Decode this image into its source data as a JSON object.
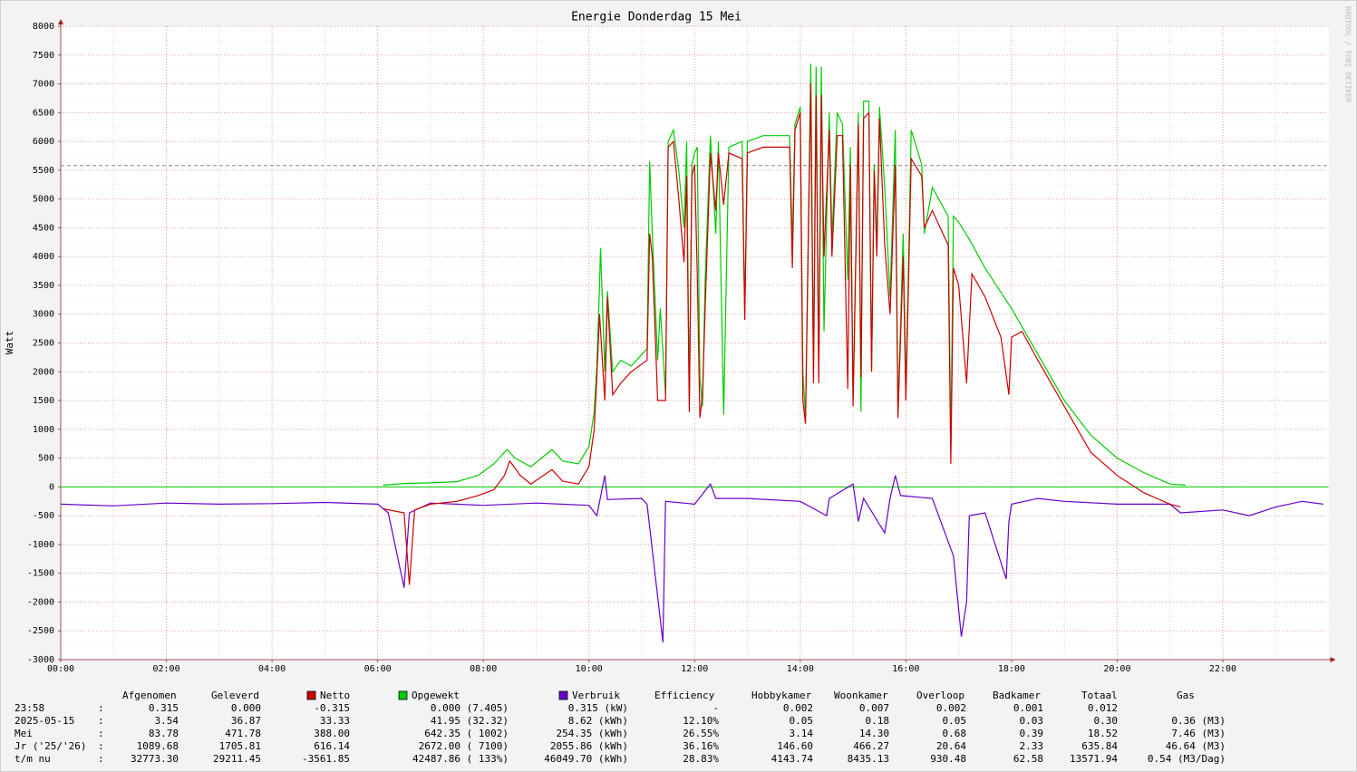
{
  "chart_data": {
    "type": "line",
    "title": "Energie Donderdag 15 Mei",
    "y_label": "Watt",
    "watermark": "RRDTOOL / TOBI OETIKER",
    "xlim": [
      0,
      24
    ],
    "ylim": [
      -3000,
      8000
    ],
    "xticks": [
      {
        "value": 0,
        "label": "00:00"
      },
      {
        "value": 2,
        "label": "02:00"
      },
      {
        "value": 4,
        "label": "04:00"
      },
      {
        "value": 6,
        "label": "06:00"
      },
      {
        "value": 8,
        "label": "08:00"
      },
      {
        "value": 10,
        "label": "10:00"
      },
      {
        "value": 12,
        "label": "12:00"
      },
      {
        "value": 14,
        "label": "14:00"
      },
      {
        "value": 16,
        "label": "16:00"
      },
      {
        "value": 18,
        "label": "18:00"
      },
      {
        "value": 20,
        "label": "20:00"
      },
      {
        "value": 22,
        "label": "22:00"
      }
    ],
    "yticks": [
      -3000,
      -2500,
      -2000,
      -1500,
      -1000,
      -500,
      0,
      500,
      1000,
      1500,
      2000,
      2500,
      3000,
      3500,
      4000,
      4500,
      5000,
      5500,
      6000,
      6500,
      7000,
      7500,
      8000
    ],
    "grid": true,
    "reference_line": 5580,
    "series": [
      {
        "name": "Netto",
        "color": "#cc0000",
        "x": [
          6.1,
          6.5,
          6.6,
          6.7,
          7.0,
          7.5,
          7.9,
          8.2,
          8.4,
          8.5,
          8.7,
          8.9,
          9.3,
          9.5,
          9.8,
          10.0,
          10.1,
          10.15,
          10.2,
          10.3,
          10.35,
          10.45,
          10.6,
          10.8,
          11.1,
          11.15,
          11.2,
          11.3,
          11.45,
          11.5,
          11.6,
          11.7,
          11.8,
          11.85,
          11.9,
          11.95,
          12.0,
          12.05,
          12.1,
          12.15,
          12.2,
          12.3,
          12.4,
          12.45,
          12.55,
          12.65,
          12.9,
          12.95,
          13.0,
          13.3,
          13.8,
          13.85,
          13.9,
          14.0,
          14.05,
          14.1,
          14.2,
          14.25,
          14.3,
          14.35,
          14.4,
          14.45,
          14.55,
          14.6,
          14.7,
          14.8,
          14.9,
          14.95,
          15.0,
          15.1,
          15.15,
          15.2,
          15.3,
          15.35,
          15.4,
          15.45,
          15.5,
          15.6,
          15.7,
          15.8,
          15.85,
          15.95,
          16.0,
          16.05,
          16.1,
          16.3,
          16.35,
          16.5,
          16.8,
          16.85,
          16.9,
          17.0,
          17.15,
          17.25,
          17.5,
          17.8,
          17.95,
          18.0,
          18.2,
          18.5,
          19.0,
          19.5,
          20.0,
          20.5,
          21.0,
          21.2
        ],
        "values": [
          -380,
          -450,
          -1700,
          -400,
          -300,
          -250,
          -150,
          -50,
          200,
          450,
          200,
          50,
          300,
          100,
          50,
          350,
          1000,
          1900,
          3000,
          1500,
          3300,
          1600,
          1800,
          2000,
          2200,
          4400,
          4000,
          1500,
          1500,
          5900,
          6000,
          5000,
          3900,
          5400,
          1300,
          5400,
          5600,
          3700,
          1200,
          1600,
          3100,
          5800,
          4800,
          5800,
          4900,
          5800,
          5700,
          2900,
          5800,
          5900,
          5900,
          3800,
          6200,
          6500,
          1500,
          1100,
          7000,
          1800,
          6800,
          1800,
          6800,
          4000,
          6200,
          4000,
          6100,
          6100,
          1700,
          5600,
          1400,
          6300,
          1900,
          6400,
          6500,
          2000,
          5500,
          4000,
          6400,
          4200,
          3000,
          5600,
          1200,
          4000,
          1500,
          3500,
          5700,
          5400,
          4500,
          4800,
          4200,
          400,
          3800,
          3500,
          1800,
          3700,
          3300,
          2600,
          1600,
          2600,
          2700,
          2200,
          1400,
          600,
          200,
          -100,
          -300,
          -350
        ]
      },
      {
        "name": "Opgewekt",
        "color": "#00cc00",
        "x": [
          6.1,
          6.5,
          7.0,
          7.5,
          7.9,
          8.2,
          8.45,
          8.6,
          8.9,
          9.1,
          9.3,
          9.5,
          9.8,
          10.0,
          10.1,
          10.15,
          10.2,
          10.22,
          10.3,
          10.35,
          10.45,
          10.6,
          10.8,
          11.0,
          11.1,
          11.15,
          11.2,
          11.3,
          11.35,
          11.45,
          11.5,
          11.6,
          11.7,
          11.8,
          11.85,
          11.9,
          11.95,
          12.0,
          12.05,
          12.1,
          12.15,
          12.2,
          12.3,
          12.4,
          12.45,
          12.55,
          12.65,
          12.9,
          12.95,
          13.0,
          13.3,
          13.8,
          13.85,
          13.9,
          14.0,
          14.05,
          14.1,
          14.2,
          14.25,
          14.3,
          14.35,
          14.4,
          14.45,
          14.55,
          14.6,
          14.7,
          14.8,
          14.9,
          14.95,
          15.0,
          15.1,
          15.15,
          15.2,
          15.3,
          15.35,
          15.4,
          15.45,
          15.5,
          15.6,
          15.7,
          15.8,
          15.85,
          15.95,
          16.0,
          16.05,
          16.1,
          16.3,
          16.35,
          16.5,
          16.8,
          16.85,
          16.9,
          17.0,
          17.2,
          17.5,
          18.0,
          18.5,
          19.0,
          19.5,
          20.0,
          20.5,
          21.0,
          21.3
        ],
        "values": [
          30,
          60,
          70,
          90,
          200,
          400,
          650,
          500,
          350,
          500,
          650,
          450,
          400,
          700,
          1300,
          2100,
          3500,
          4150,
          2000,
          3400,
          2000,
          2200,
          2100,
          2300,
          2400,
          5650,
          4400,
          2200,
          3100,
          1600,
          6000,
          6200,
          5500,
          4500,
          6000,
          1500,
          5600,
          5800,
          5900,
          1900,
          1400,
          3600,
          6100,
          4400,
          6000,
          1250,
          5900,
          6000,
          3000,
          6000,
          6100,
          6100,
          4200,
          6300,
          6600,
          2000,
          1200,
          7350,
          2000,
          7300,
          2000,
          7300,
          2700,
          6500,
          4300,
          6500,
          6300,
          3600,
          5900,
          1500,
          6500,
          1300,
          6700,
          6700,
          2000,
          5600,
          4200,
          6600,
          5200,
          3300,
          6200,
          1300,
          4400,
          1700,
          3800,
          6200,
          5600,
          4400,
          5200,
          4700,
          700,
          4700,
          4600,
          4300,
          3800,
          3100,
          2300,
          1500,
          900,
          500,
          250,
          50,
          30
        ]
      },
      {
        "name": "Verbruik",
        "color": "#6600cc",
        "x": [
          0,
          1,
          2,
          3,
          4,
          5,
          6,
          6.2,
          6.5,
          6.6,
          7.0,
          8.0,
          9.0,
          10.0,
          10.15,
          10.3,
          10.35,
          11.0,
          11.1,
          11.4,
          11.45,
          12.0,
          12.3,
          12.4,
          13.0,
          14.0,
          14.5,
          14.55,
          15.0,
          15.1,
          15.2,
          15.6,
          15.7,
          15.8,
          15.9,
          16.5,
          16.9,
          17.05,
          17.15,
          17.2,
          17.5,
          17.9,
          17.95,
          18.0,
          18.5,
          19.0,
          20.0,
          21.0,
          21.2,
          22.0,
          22.5,
          23.0,
          23.5,
          23.9
        ],
        "values": [
          -300,
          -330,
          -280,
          -300,
          -290,
          -270,
          -300,
          -450,
          -1750,
          -450,
          -280,
          -320,
          -280,
          -320,
          -500,
          200,
          -220,
          -200,
          -300,
          -2700,
          -250,
          -300,
          50,
          -200,
          -200,
          -250,
          -500,
          -200,
          50,
          -600,
          -200,
          -800,
          -200,
          200,
          -150,
          -200,
          -1200,
          -2600,
          -2000,
          -500,
          -450,
          -1600,
          -600,
          -300,
          -200,
          -250,
          -300,
          -300,
          -450,
          -400,
          -500,
          -350,
          -250,
          -300
        ]
      }
    ]
  },
  "table": {
    "columns": [
      "Afgenomen",
      "Geleverd",
      "Efficiency",
      "Hobbykamer",
      "Woonkamer",
      "Overloop",
      "Badkamer",
      "Totaal",
      "Gas"
    ],
    "separator": ":",
    "rows": [
      {
        "label": "23:58",
        "cells": [
          "0.315",
          "0.000",
          "-0.315",
          "0.000 (7.405)",
          "0.315 (kW)",
          "-",
          "0.002",
          "0.007",
          "0.002",
          "0.001",
          "0.012"
        ]
      },
      {
        "label": "2025-05-15",
        "cells": [
          "3.54",
          "36.87",
          "33.33",
          "41.95 (32.32)",
          "8.62 (kWh)",
          "12.10%",
          "0.05",
          "0.18",
          "0.05",
          "0.03",
          "0.30",
          "0.36 (M3)"
        ]
      },
      {
        "label": "Mei",
        "cells": [
          "83.78",
          "471.78",
          "388.00",
          "642.35 ( 1002)",
          "254.35 (kWh)",
          "26.55%",
          "3.14",
          "14.30",
          "0.68",
          "0.39",
          "18.52",
          "7.46 (M3)"
        ]
      },
      {
        "label": "Jr ('25/'26)",
        "cells": [
          "1089.68",
          "1705.81",
          "616.14",
          "2672.00 ( 7100)",
          "2055.86 (kWh)",
          "36.16%",
          "146.60",
          "466.27",
          "20.64",
          "2.33",
          "635.84",
          "46.64 (M3)"
        ]
      },
      {
        "label": "t/m nu",
        "cells": [
          "32773.30",
          "29211.45",
          "-3561.85",
          "42487.86 ( 133%)",
          "46049.70 (kWh)",
          "28.83%",
          "4143.74",
          "8435.13",
          "930.48",
          "62.58",
          "13571.94",
          "0.54 (M3/Dag)"
        ]
      }
    ]
  }
}
